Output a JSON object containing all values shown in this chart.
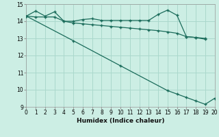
{
  "title": "",
  "xlabel": "Humidex (Indice chaleur)",
  "ylabel": "",
  "bg_color": "#cceee4",
  "grid_color": "#aad8cc",
  "line_color": "#1a6b5a",
  "xlim": [
    0,
    20
  ],
  "ylim": [
    9,
    15
  ],
  "yticks": [
    9,
    10,
    11,
    12,
    13,
    14,
    15
  ],
  "xticks": [
    0,
    1,
    2,
    3,
    4,
    5,
    6,
    7,
    8,
    9,
    10,
    11,
    12,
    13,
    14,
    15,
    16,
    17,
    18,
    19,
    20
  ],
  "line1_x": [
    0,
    1,
    2,
    3,
    4,
    5,
    6,
    7,
    8,
    9,
    10,
    11,
    12,
    13,
    14,
    15,
    16,
    17,
    18,
    19
  ],
  "line1_y": [
    14.3,
    14.6,
    14.3,
    14.55,
    14.0,
    14.0,
    14.1,
    14.15,
    14.05,
    14.05,
    14.05,
    14.05,
    14.05,
    14.05,
    14.4,
    14.65,
    14.35,
    13.1,
    13.05,
    13.0
  ],
  "line2_x": [
    0,
    1,
    2,
    3,
    4,
    5,
    6,
    7,
    8,
    9,
    10,
    11,
    12,
    13,
    14,
    15,
    16,
    17,
    18,
    19
  ],
  "line2_y": [
    14.3,
    14.25,
    14.25,
    14.25,
    14.0,
    13.9,
    13.85,
    13.8,
    13.75,
    13.7,
    13.65,
    13.6,
    13.55,
    13.5,
    13.45,
    13.38,
    13.3,
    13.1,
    13.05,
    12.95
  ],
  "line3_x": [
    0,
    5,
    10,
    15,
    16,
    17,
    18,
    19,
    20
  ],
  "line3_y": [
    14.3,
    12.86,
    11.4,
    9.95,
    9.75,
    9.55,
    9.35,
    9.15,
    9.5
  ]
}
